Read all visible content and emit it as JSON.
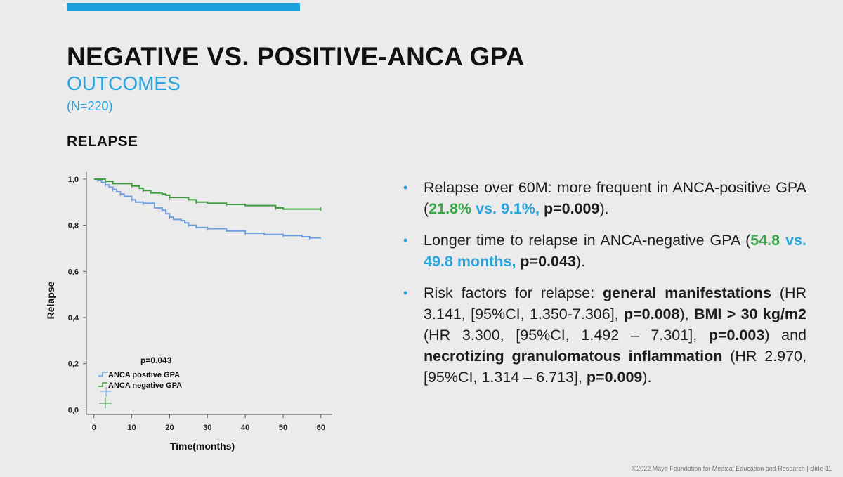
{
  "slide": {
    "title": "NEGATIVE VS. POSITIVE-ANCA GPA",
    "subtitle": "OUTCOMES",
    "n_label": "(N=220)",
    "section_heading": "RELAPSE",
    "footer": "©2022 Mayo Foundation for Medical Education and Research  |  slide-11"
  },
  "bullets": [
    {
      "parts": [
        {
          "text": "Relapse over 60M: more frequent in ANCA-positive GPA (",
          "style": "normal"
        },
        {
          "text": "21.8%",
          "style": "green"
        },
        {
          "text": " vs. 9.1%,",
          "style": "blue"
        },
        {
          "text": " p=0.009",
          "style": "bold"
        },
        {
          "text": ").",
          "style": "normal"
        }
      ]
    },
    {
      "parts": [
        {
          "text": "Longer time to relapse in ANCA-negative GPA (",
          "style": "normal"
        },
        {
          "text": "54.8",
          "style": "green"
        },
        {
          "text": " vs. 49.8 months,",
          "style": "blue"
        },
        {
          "text": " p=0.043",
          "style": "bold"
        },
        {
          "text": ").",
          "style": "normal"
        }
      ]
    },
    {
      "parts": [
        {
          "text": "Risk factors for relapse: ",
          "style": "normal"
        },
        {
          "text": "general manifestations",
          "style": "bold"
        },
        {
          "text": " (HR 3.141, [95%CI, 1.350-7.306], ",
          "style": "normal"
        },
        {
          "text": "p=0.008",
          "style": "bold"
        },
        {
          "text": "), ",
          "style": "normal"
        },
        {
          "text": "BMI > 30 kg/m2",
          "style": "bold"
        },
        {
          "text": " (HR 3.300, [95%CI, 1.492 – 7.301], ",
          "style": "normal"
        },
        {
          "text": "p=0.003",
          "style": "bold"
        },
        {
          "text": ") and ",
          "style": "normal"
        },
        {
          "text": "necrotizing granulomatous inflammation",
          "style": "bold"
        },
        {
          "text": " (HR 2.970, [95%CI, 1.314 – 6.713], ",
          "style": "normal"
        },
        {
          "text": "p=0.009",
          "style": "bold"
        },
        {
          "text": ").",
          "style": "normal"
        }
      ]
    }
  ],
  "colors": {
    "accent_blue": "#2aa3dc",
    "accent_green": "#3aa84a",
    "series_positive": "#6f9fdf",
    "series_negative": "#3f9a3f"
  },
  "chart_data": {
    "type": "line",
    "title": "",
    "xlabel": "Time(months)",
    "ylabel": "Relapse",
    "xlim": [
      -2,
      63
    ],
    "ylim": [
      -0.02,
      1.03
    ],
    "x_ticks": [
      0,
      10,
      20,
      30,
      40,
      50,
      60
    ],
    "y_ticks": [
      0.0,
      0.2,
      0.4,
      0.6,
      0.8,
      1.0
    ],
    "y_tick_labels": [
      "0,0",
      "0,2",
      "0,4",
      "0,6",
      "0,8",
      "1,0"
    ],
    "annotation": "p=0.043",
    "legend_position": "bottom-left",
    "series": [
      {
        "name": "ANCA positive GPA",
        "color": "#6f9fdf",
        "step": true,
        "x": [
          0,
          1,
          2,
          3,
          4,
          5,
          6,
          7,
          8,
          10,
          11,
          13,
          16,
          18,
          19,
          20,
          21,
          23,
          24,
          25,
          27,
          30,
          35,
          40,
          45,
          50,
          55,
          57,
          60
        ],
        "y": [
          1.0,
          0.995,
          0.985,
          0.975,
          0.965,
          0.955,
          0.945,
          0.935,
          0.925,
          0.91,
          0.9,
          0.895,
          0.875,
          0.865,
          0.85,
          0.835,
          0.825,
          0.82,
          0.81,
          0.8,
          0.79,
          0.785,
          0.775,
          0.765,
          0.76,
          0.755,
          0.75,
          0.745,
          0.745
        ]
      },
      {
        "name": "ANCA negative GPA",
        "color": "#3f9a3f",
        "step": true,
        "x": [
          0,
          3,
          5,
          10,
          12,
          13,
          15,
          18,
          19,
          20,
          25,
          27,
          30,
          35,
          40,
          48,
          50,
          60
        ],
        "y": [
          1.0,
          0.99,
          0.98,
          0.97,
          0.96,
          0.95,
          0.94,
          0.935,
          0.93,
          0.92,
          0.91,
          0.9,
          0.895,
          0.89,
          0.885,
          0.875,
          0.87,
          0.87
        ]
      }
    ]
  }
}
